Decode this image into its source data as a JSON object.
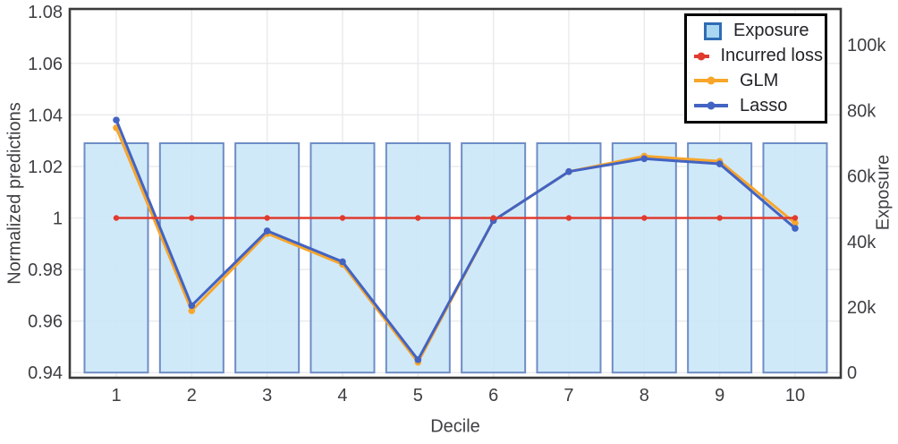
{
  "chart_data": {
    "type": "combo",
    "categories": [
      "1",
      "2",
      "3",
      "4",
      "5",
      "6",
      "7",
      "8",
      "9",
      "10"
    ],
    "xlabel": "Decile",
    "left_axis": {
      "label": "Normalized predictions",
      "tick_labels": [
        "0.94",
        "0.96",
        "0.98",
        "1",
        "1.02",
        "1.04",
        "1.06",
        "1.08"
      ],
      "tick_values": [
        0.94,
        0.96,
        0.98,
        1.0,
        1.02,
        1.04,
        1.06,
        1.08
      ],
      "range": [
        0.938,
        1.082
      ]
    },
    "right_axis": {
      "label": "Exposure",
      "tick_labels": [
        "0",
        "20k",
        "40k",
        "60k",
        "80k",
        "100k"
      ],
      "tick_values": [
        0,
        20000,
        40000,
        60000,
        80000,
        100000
      ],
      "range": [
        0,
        112000
      ]
    },
    "bar_series": {
      "name": "Exposure",
      "axis": "right",
      "values": [
        70000,
        70000,
        70000,
        70000,
        70000,
        70000,
        70000,
        70000,
        70000,
        70000
      ],
      "fill": "#c9e6f8",
      "stroke": "#6e8dc6"
    },
    "line_series": [
      {
        "name": "Incurred loss",
        "axis": "left",
        "color": "#e03b2f",
        "values": [
          1.0,
          1.0,
          1.0,
          1.0,
          1.0,
          1.0,
          1.0,
          1.0,
          1.0,
          1.0
        ]
      },
      {
        "name": "GLM",
        "axis": "left",
        "color": "#f7a62b",
        "values": [
          1.035,
          0.964,
          0.994,
          0.982,
          0.944,
          0.999,
          1.018,
          1.024,
          1.022,
          0.998
        ]
      },
      {
        "name": "Lasso",
        "axis": "left",
        "color": "#4363c2",
        "values": [
          1.038,
          0.966,
          0.995,
          0.983,
          0.945,
          0.999,
          1.018,
          1.023,
          1.021,
          0.996
        ]
      }
    ],
    "grid": true,
    "legend_position": "top-right"
  },
  "colors": {
    "grid": "#e9eaec",
    "axis_border": "#3a3a3a",
    "tick_text": "#3d3f42",
    "legend_border": "#000000",
    "legend_swatch_fill": "#a9d7f2",
    "legend_swatch_stroke": "#2f6cb4"
  }
}
